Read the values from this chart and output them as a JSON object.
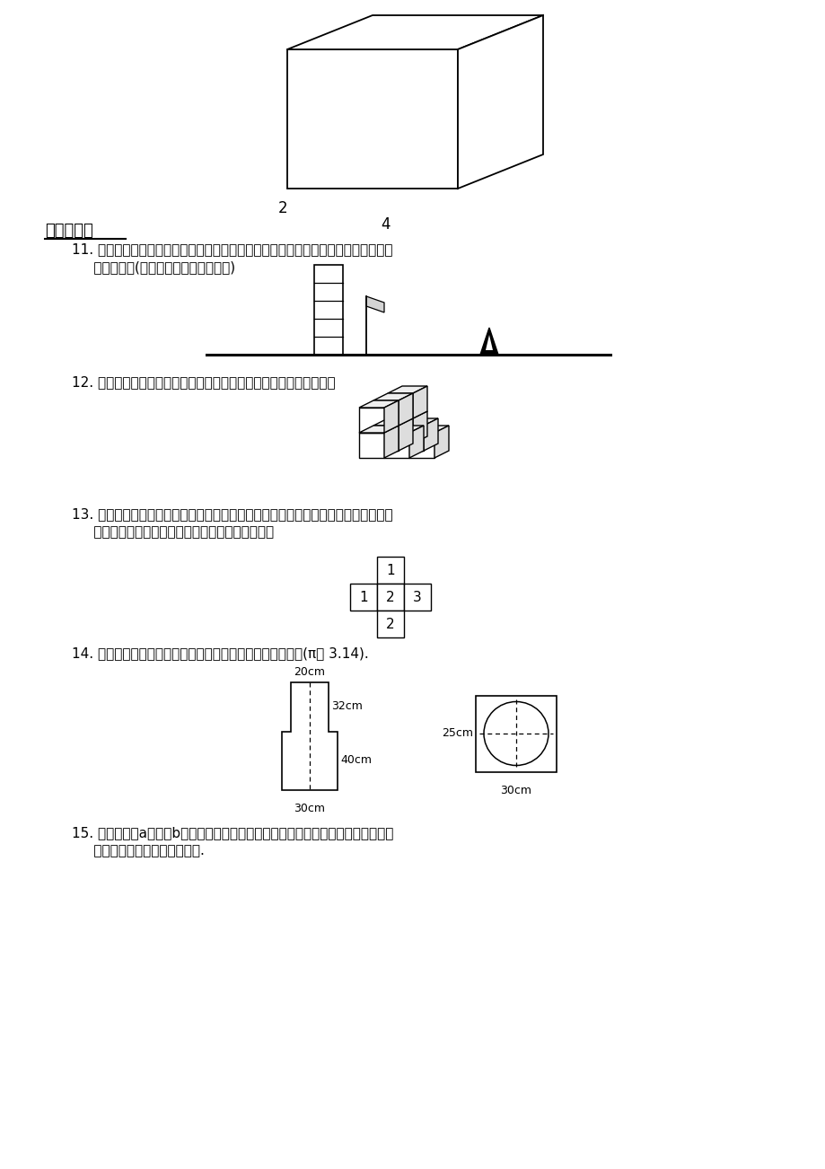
{
  "bg_color": "#ffffff",
  "title_section3": "三、解答题",
  "q11_line1": "11. 楼房、旗杆在路灯下的影子如图所示，试确定路灯灯炮的位置，再作出小树在路灯",
  "q11_line2": "     下的影子．(不写作法，保留作图痕迹)",
  "q12_text": "12. 画出图中的九块小立方块搭成几何体的主视图、左视图和俯视图．",
  "q13_line1": "13. 如图是由几个小立方块所搭几何体的俯视图，小正方形中的数字表示该位置小立方",
  "q13_line2": "     块的个数，请画出这个几何体的主视图和左视图．",
  "q14_text": "14. 如图是一个几何体的主视图和俯视图，求该几何体的体积(π取 3.14).",
  "q15_line1": "15. 拿一张长为a，宽为b的纸，作一圆柱的侧面，用不同的方法作成两种圆柱，画出",
  "q15_line2": "     图形并求这两种圆柱的表面积."
}
